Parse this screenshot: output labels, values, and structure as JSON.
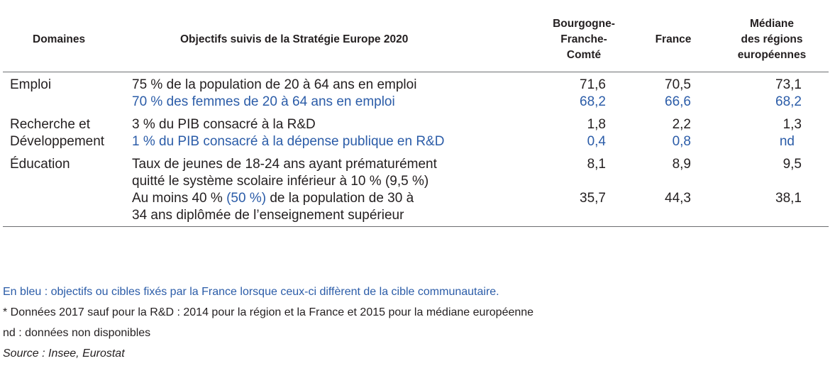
{
  "headers": {
    "domain": "Domaines",
    "objective": "Objectifs suivis de la Stratégie Europe 2020",
    "bfc": [
      "Bourgogne-",
      "Franche-",
      "Comté"
    ],
    "france": "France",
    "median": [
      "Médiane",
      "des régions",
      "européennes"
    ]
  },
  "rows": {
    "emploi": {
      "domain": "Emploi",
      "r1": {
        "objective": "75 % de la population de 20 à 64 ans en emploi",
        "bfc": "71,6",
        "france": "70,5",
        "median": "73,1"
      },
      "r2": {
        "objective": "70 % des femmes de 20 à 64 ans en emploi",
        "bfc": "68,2",
        "france": "66,6",
        "median": "68,2"
      }
    },
    "recherche": {
      "domain_l1": "Recherche et",
      "domain_l2": "Développement",
      "r1": {
        "objective": "3 % du PIB consacré à la R&D",
        "bfc": "1,8",
        "france": "2,2",
        "median": "1,3"
      },
      "r2": {
        "objective": "1 % du PIB consacré à la dépense publique en R&D",
        "bfc": "0,4",
        "france": "0,8",
        "median": "nd"
      }
    },
    "education": {
      "domain": "Éducation",
      "r1": {
        "objective_l1": "Taux de jeunes de 18-24 ans ayant prématurément",
        "objective_l2": "quitté le système scolaire inférieur à 10 % (9,5 %)",
        "bfc": "8,1",
        "france": "8,9",
        "median": "9,5"
      },
      "r2": {
        "objective_l1_a": "Au moins 40 % ",
        "objective_l1_b": "(50 %)",
        "objective_l1_c": " de la population de 30 à",
        "objective_l2": "34 ans diplômée de l’enseignement supérieur",
        "bfc": "35,7",
        "france": "44,3",
        "median": "38,1"
      }
    }
  },
  "notes": {
    "blue_note": "En bleu : objectifs ou cibles fixés par la France lorsque ceux-ci diffèrent de la cible communautaire.",
    "data_note": "* Données 2017 sauf pour la R&D : 2014 pour la région et la France et 2015 pour la médiane européenne",
    "nd_note": "nd : données non disponibles",
    "source": "Source : Insee, Eurostat"
  },
  "colors": {
    "text": "#231f20",
    "blue": "#2b5ca8",
    "rule": "#6d6e71"
  }
}
